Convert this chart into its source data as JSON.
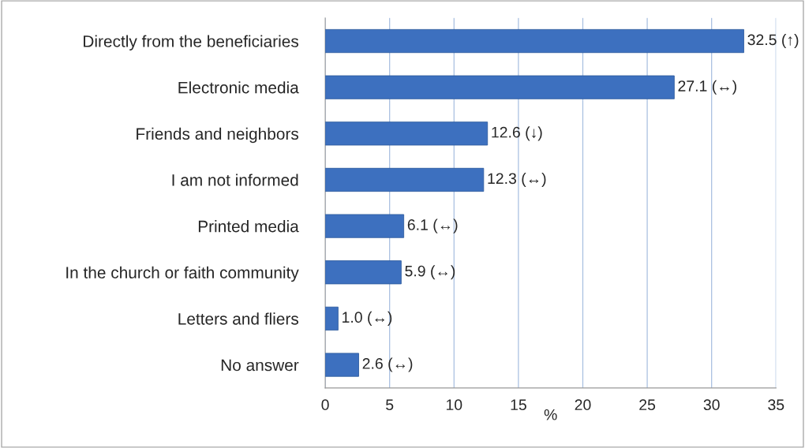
{
  "chart_data": {
    "type": "bar",
    "orientation": "horizontal",
    "xlabel": "%",
    "categories": [
      "Directly from the beneficiaries",
      "Electronic media",
      "Friends and neighbors",
      "I am not informed",
      "Printed media",
      "In the church or faith community",
      "Letters and fliers",
      "No answer"
    ],
    "values": [
      32.5,
      27.1,
      12.6,
      12.3,
      6.1,
      5.9,
      1.0,
      2.6
    ],
    "value_labels": [
      "32.5 (↑)",
      "27.1 (↔)",
      "12.6 (↓)",
      "12.3 (↔)",
      "6.1 (↔)",
      "5.9 (↔)",
      "1.0 (↔)",
      "2.6 (↔)"
    ],
    "color": "#3d70bf",
    "xlim": [
      0,
      35
    ],
    "xticks": [
      0,
      5,
      10,
      15,
      20,
      25,
      30,
      35
    ],
    "grid": "x"
  }
}
